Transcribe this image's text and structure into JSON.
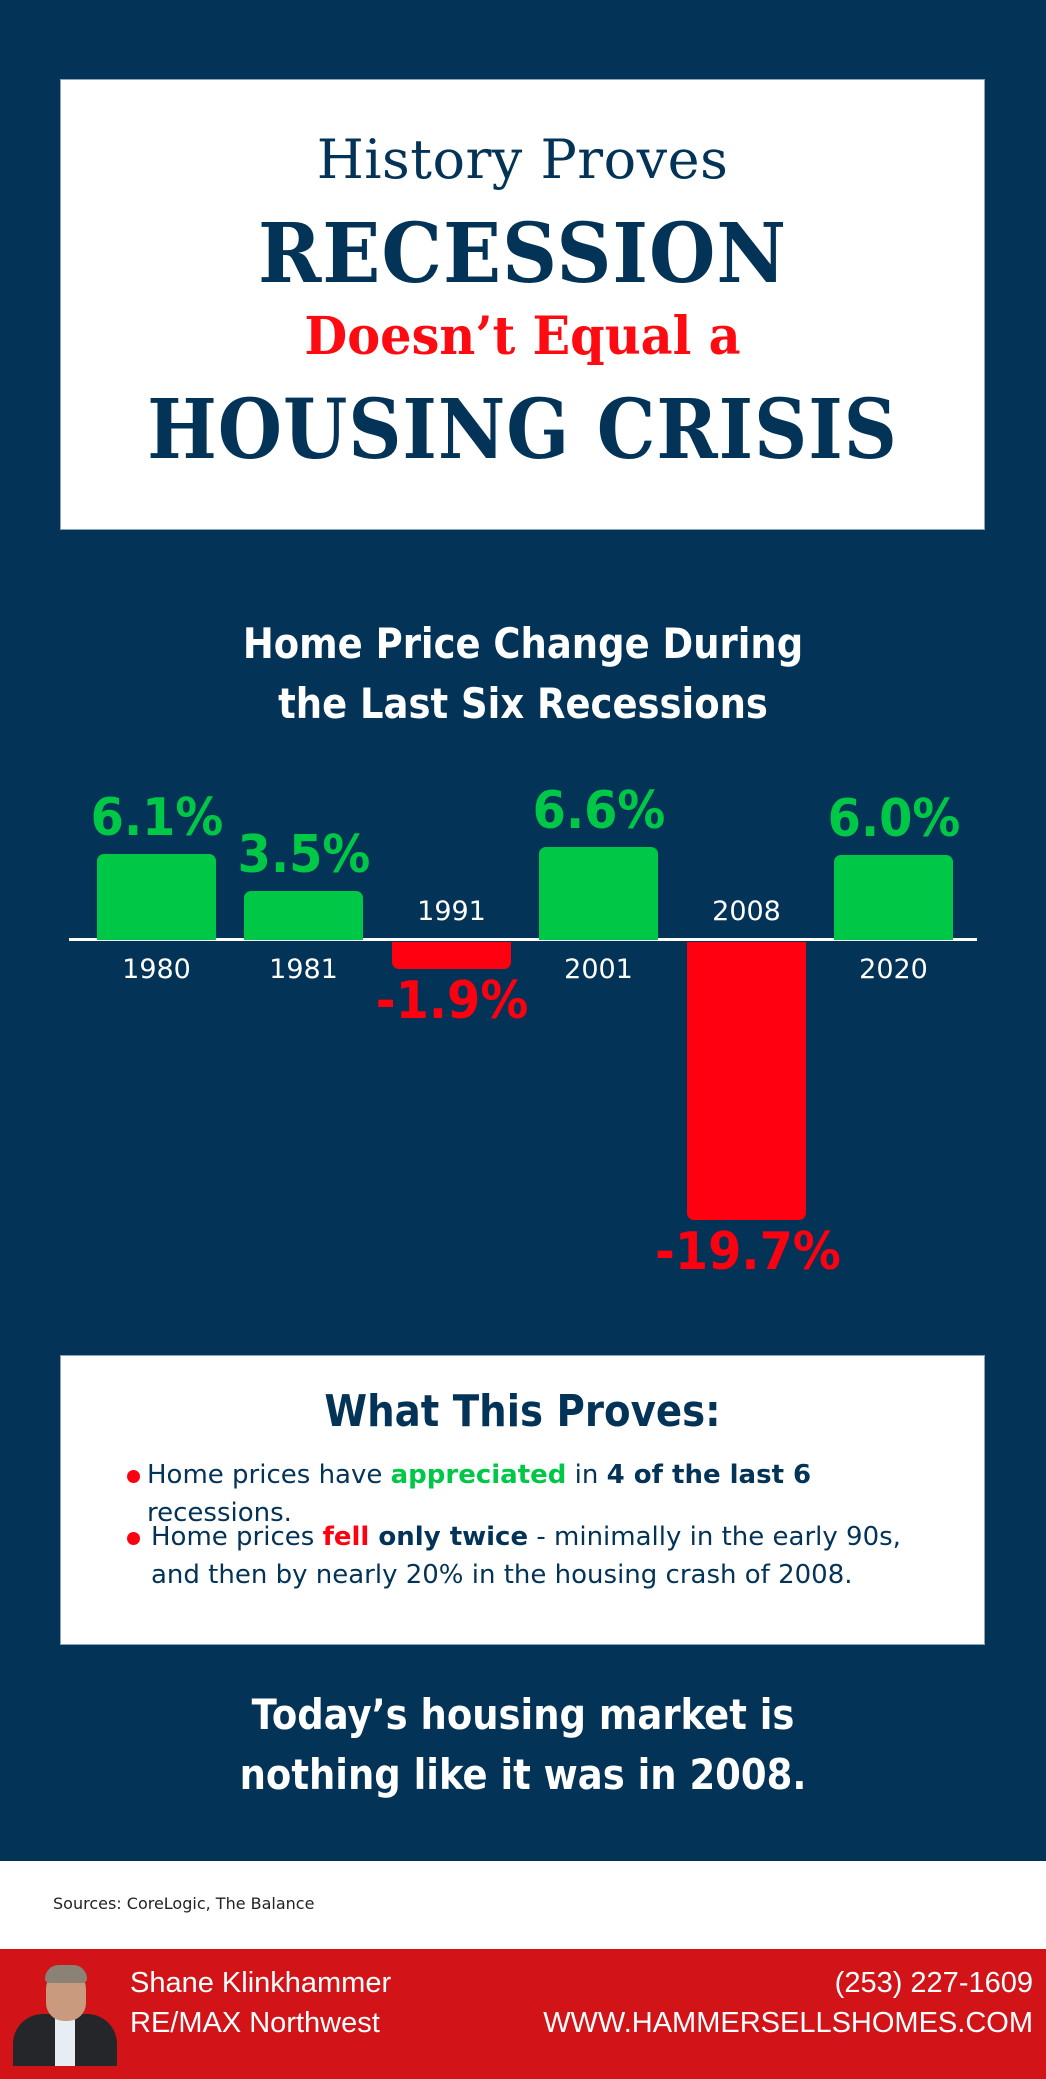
{
  "header": {
    "line1": "History Proves",
    "line2": "RECESSION",
    "line3": "Doesn’t Equal a",
    "line4": "HOUSING CRISIS"
  },
  "chart_title": {
    "line1": "Home Price Change During",
    "line2": "the Last Six Recessions"
  },
  "chart_data": {
    "type": "bar",
    "title": "Home Price Change During the Last Six Recessions",
    "xlabel": "",
    "ylabel": "",
    "categories": [
      "1980",
      "1981",
      "1991",
      "2001",
      "2008",
      "2020"
    ],
    "values": [
      6.1,
      3.5,
      -1.9,
      6.6,
      -19.7,
      6.0
    ],
    "value_labels": [
      "6.1%",
      "3.5%",
      "-1.9%",
      "6.6%",
      "-19.7%",
      "6.0%"
    ],
    "colors": {
      "positive": "#00c847",
      "negative": "#fe0010"
    },
    "grid": false,
    "legend": null,
    "ylim": [
      -20,
      7
    ]
  },
  "proves": {
    "title": "What This Proves:",
    "bullet1": {
      "pre": "Home prices have ",
      "green": "appreciated",
      "mid": " in ",
      "bold": "4 of the last 6",
      "post": " recessions."
    },
    "bullet2": {
      "pre": "Home prices ",
      "red": "fell",
      "bold": " only twice",
      "post": " - minimally in the early 90s, and then by nearly 20% in the housing crash of 2008."
    }
  },
  "conclusion": {
    "line1": "Today’s housing market is",
    "line2": "nothing like it was in 2008."
  },
  "sources": "Sources: CoreLogic, The Balance",
  "footer": {
    "name": "Shane Klinkhammer",
    "company": "RE/MAX Northwest",
    "phone": "(253) 227-1609",
    "website": "WWW.HAMMERSELLSHOMES.COM"
  },
  "colors": {
    "background": "#033357",
    "green": "#00c847",
    "red": "#fe0010",
    "footer_red": "#d21317"
  }
}
